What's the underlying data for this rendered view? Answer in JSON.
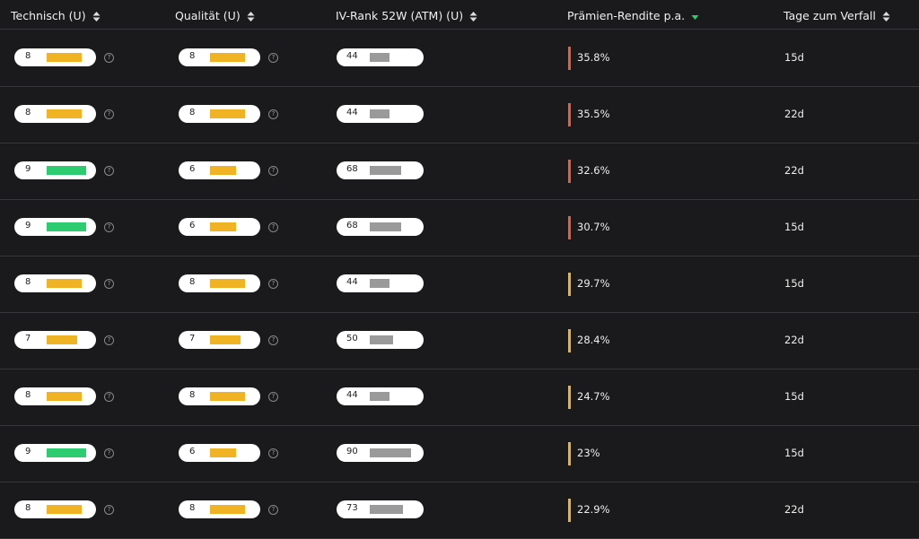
{
  "table": {
    "headers": [
      "Technisch (U)",
      "Qualität (U)",
      "IV-Rank 52W (ATM) (U)",
      "Prämien-Rendite p.a.",
      "Tage zum Verfall"
    ],
    "rows": [
      [
        8,
        8,
        44,
        "35.8%",
        "15d"
      ],
      [
        8,
        8,
        44,
        "35.5%",
        "22d"
      ],
      [
        9,
        6,
        68,
        "32.6%",
        "22d"
      ],
      [
        9,
        6,
        68,
        "30.7%",
        "15d"
      ],
      [
        8,
        8,
        44,
        "29.7%",
        "15d"
      ],
      [
        7,
        7,
        50,
        "28.4%",
        "22d"
      ],
      [
        8,
        8,
        44,
        "24.7%",
        "15d"
      ],
      [
        9,
        6,
        90,
        "23%",
        "15d"
      ],
      [
        8,
        8,
        73,
        "22.9%",
        "22d"
      ]
    ]
  }
}
